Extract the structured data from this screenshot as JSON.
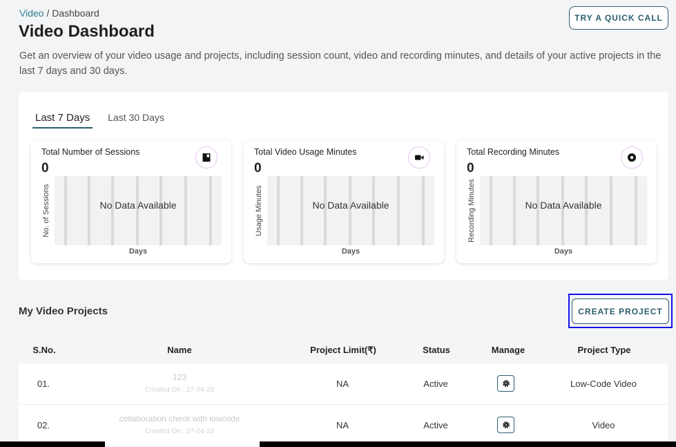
{
  "breadcrumb": {
    "root": "Video",
    "separator": " / ",
    "current": "Dashboard"
  },
  "title": "Video Dashboard",
  "quick_call_label": "TRY A QUICK CALL",
  "overview": "Get an overview of your video usage and projects, including session count, video and recording minutes, and details of your active projects in the last 7 days and 30 days.",
  "tabs": [
    {
      "label": "Last 7 Days",
      "active": true
    },
    {
      "label": "Last 30 Days",
      "active": false
    }
  ],
  "charts": [
    {
      "title": "Total Number of Sessions",
      "value": "0",
      "ylabel": "No. of Sessions",
      "xlabel": "Days",
      "empty_text": "No Data Available",
      "icon": "document-icon"
    },
    {
      "title": "Total Video Usage Minutes",
      "value": "0",
      "ylabel": "Usage Minutes",
      "xlabel": "Days",
      "empty_text": "No Data Available",
      "icon": "video-camera-icon"
    },
    {
      "title": "Total Recording Minutes",
      "value": "0",
      "ylabel": "Recording Minutes",
      "xlabel": "Days",
      "empty_text": "No Data Available",
      "icon": "record-icon"
    }
  ],
  "projects": {
    "title": "My Video Projects",
    "create_label": "CREATE PROJECT",
    "columns": [
      "S.No.",
      "Name",
      "Project Limit(₹)",
      "Status",
      "Manage",
      "Project Type"
    ],
    "rows": [
      {
        "sno": "01.",
        "name": "123",
        "created": "Created On : 27-04-23",
        "limit": "NA",
        "status": "Active",
        "type": "Low-Code Video"
      },
      {
        "sno": "02.",
        "name": "collaboration check with lowcode",
        "created": "Created On : 27-04-23",
        "limit": "NA",
        "status": "Active",
        "type": "Video"
      }
    ]
  },
  "colors": {
    "accent": "#2c5d6e",
    "link": "#2f7f8c",
    "focus": "#1212ea",
    "icon_ring": "#e6c6ee"
  }
}
